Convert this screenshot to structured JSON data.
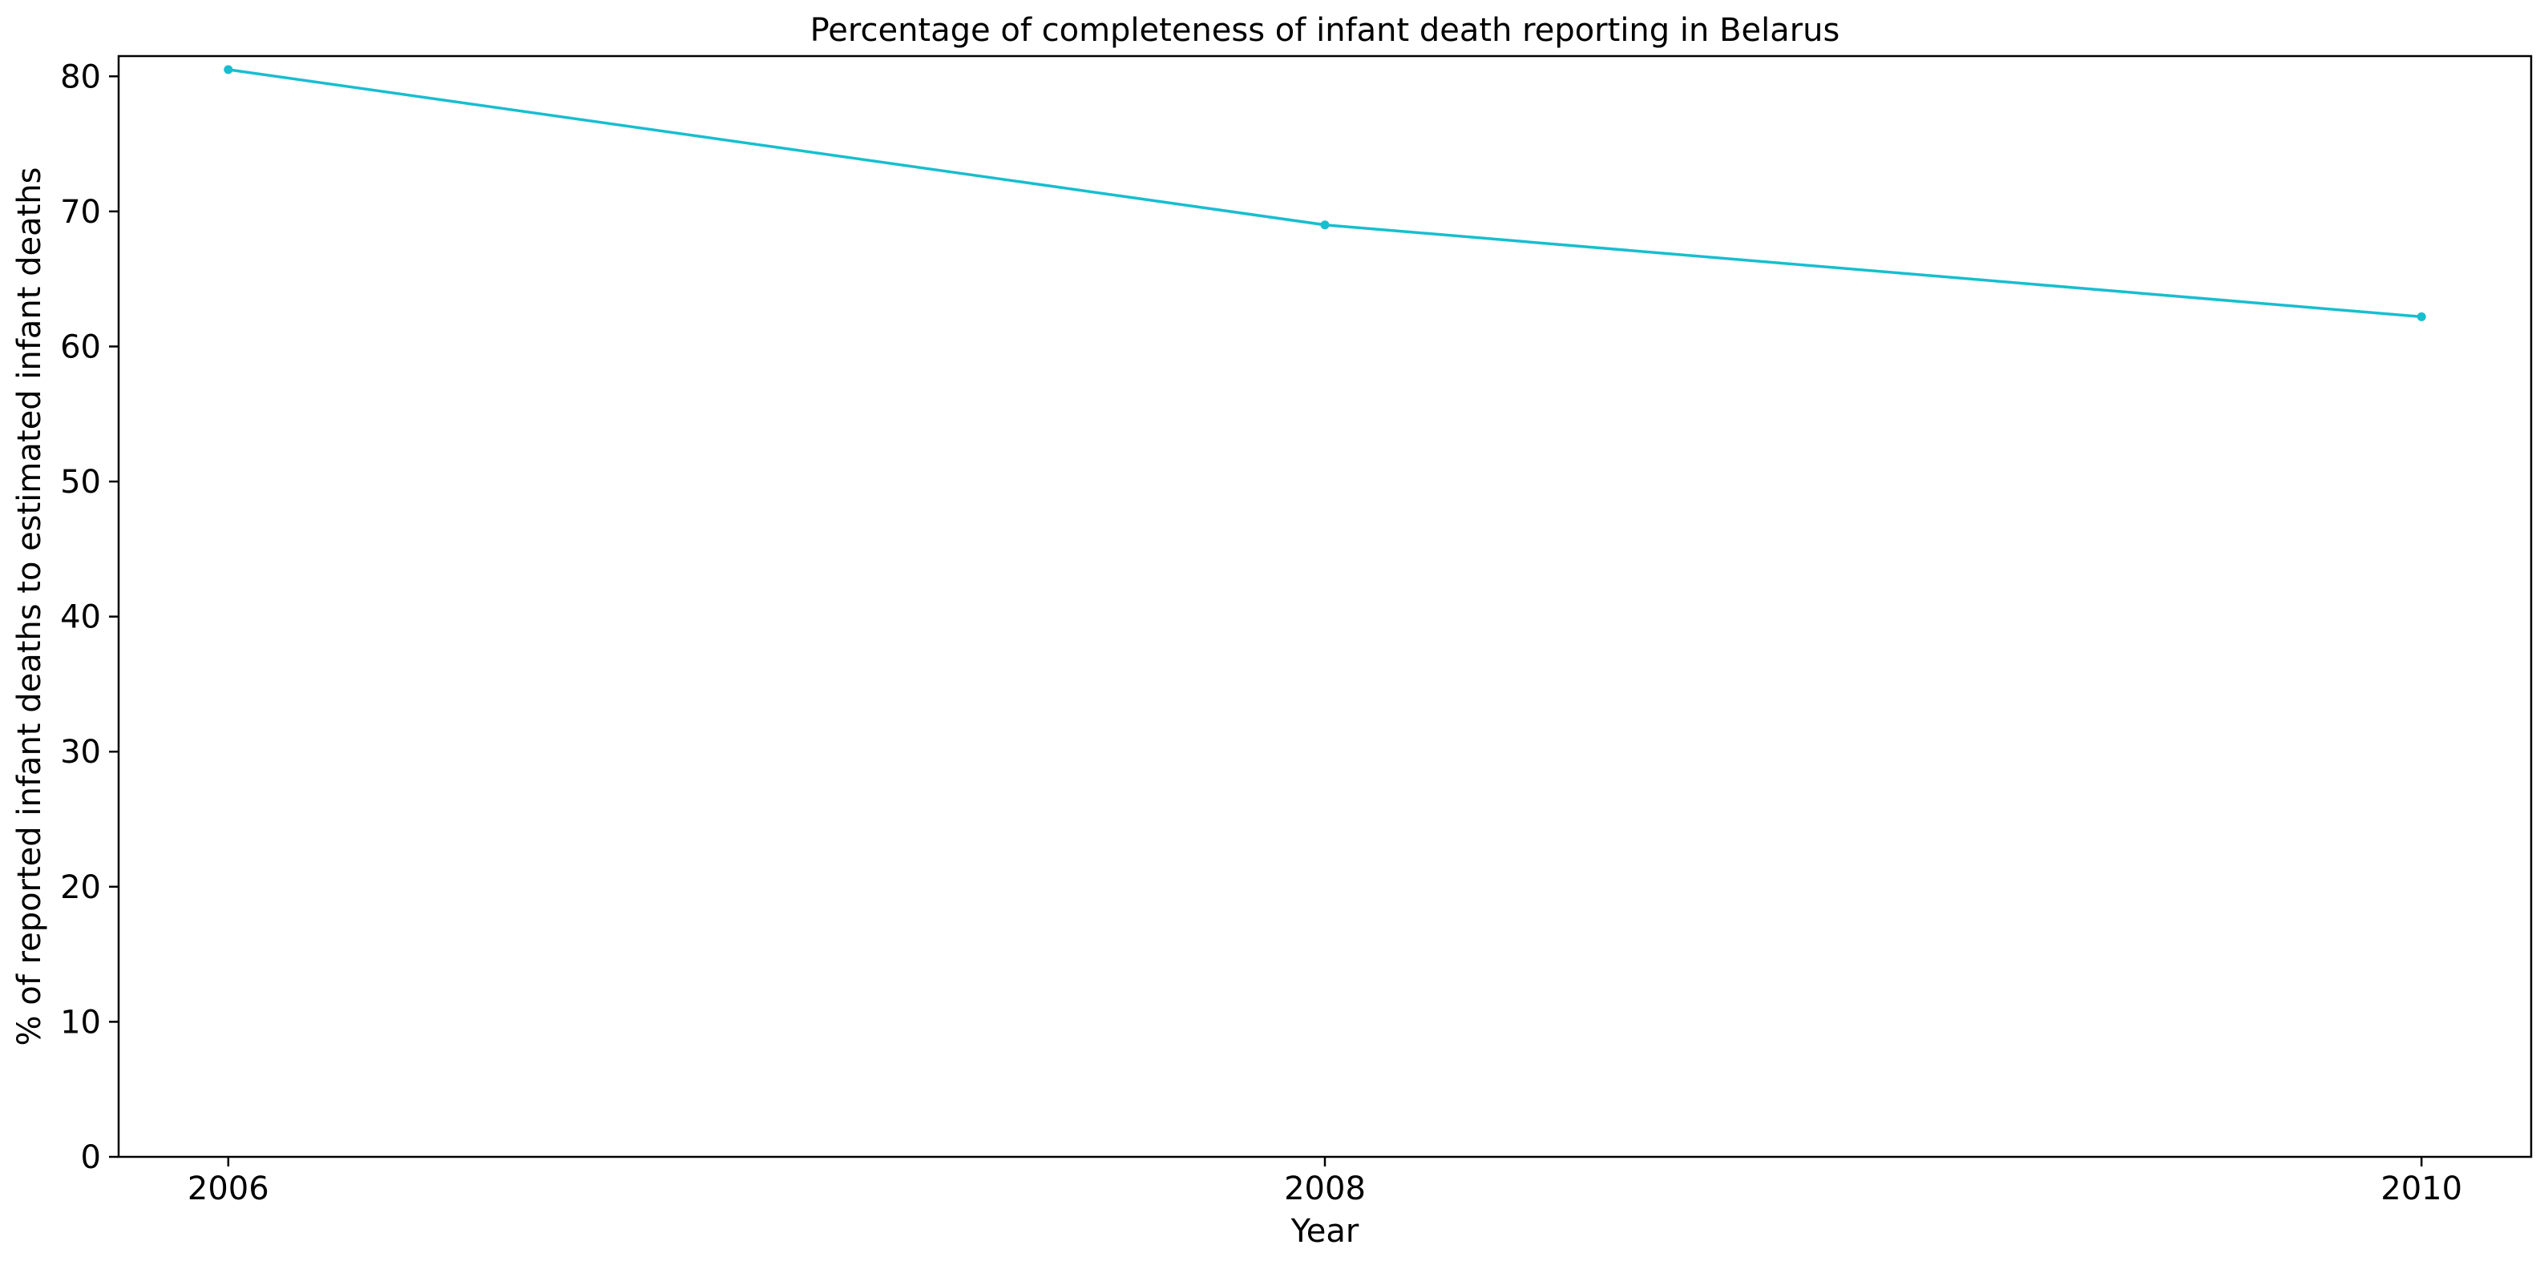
{
  "chart_data": {
    "type": "line",
    "title": "Percentage of completeness of infant death reporting in Belarus",
    "xlabel": "Year",
    "ylabel": "% of reported infant deaths to estimated infant deaths",
    "x": [
      2006,
      2008,
      2010
    ],
    "x_tick_labels": [
      "2006",
      "2008",
      "2010"
    ],
    "y_ticks": [
      0,
      10,
      20,
      30,
      40,
      50,
      60,
      70,
      80
    ],
    "y_tick_labels": [
      "0",
      "10",
      "20",
      "30",
      "40",
      "50",
      "60",
      "70",
      "80"
    ],
    "series": [
      {
        "values": [
          80.5,
          69.0,
          62.2
        ],
        "color": "#17becf"
      }
    ],
    "xlim": [
      2005.8,
      2010.2
    ],
    "ylim": [
      0,
      81.5
    ],
    "grid": false,
    "legend": "none"
  }
}
